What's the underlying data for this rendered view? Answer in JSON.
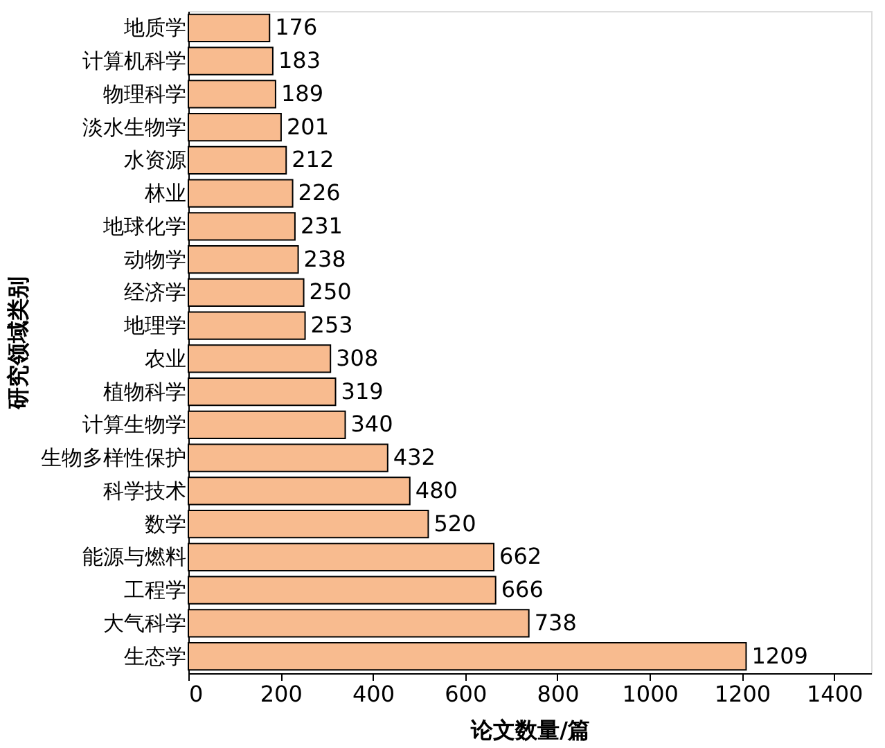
{
  "chart_data": {
    "type": "bar",
    "orientation": "horizontal",
    "xlabel": "论文数量/篇",
    "ylabel": "研究领域类别",
    "categories": [
      "地质学",
      "计算机科学",
      "物理科学",
      "淡水生物学",
      "水资源",
      "林业",
      "地球化学",
      "动物学",
      "经济学",
      "地理学",
      "农业",
      "植物科学",
      "计算生物学",
      "生物多样性保护",
      "科学技术",
      "数学",
      "能源与燃料",
      "工程学",
      "大气科学",
      "生态学"
    ],
    "values": [
      176,
      183,
      189,
      201,
      212,
      226,
      231,
      238,
      250,
      253,
      308,
      319,
      340,
      432,
      480,
      520,
      662,
      666,
      738,
      1209
    ],
    "color": "#f8bb8f",
    "xlim": [
      0,
      1480
    ],
    "xticks": [
      0,
      200,
      400,
      600,
      800,
      1000,
      1200,
      1400
    ],
    "data_labels": true,
    "grid": false
  }
}
